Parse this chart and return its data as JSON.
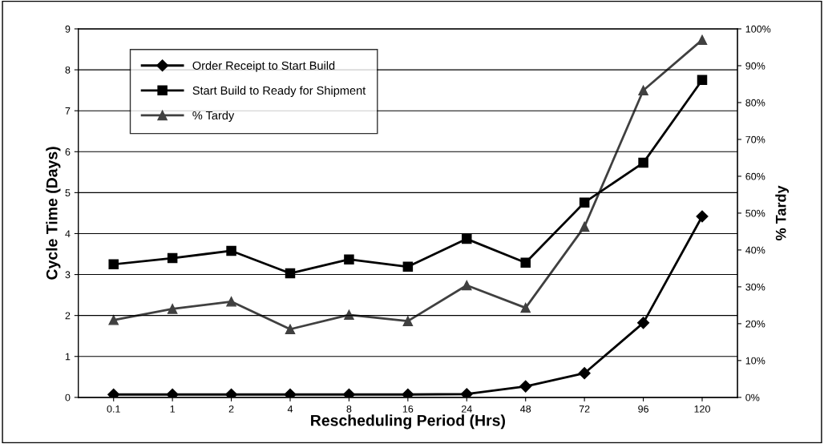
{
  "chart_data": {
    "type": "line",
    "xlabel": "Rescheduling Period (Hrs)",
    "ylabel": "Cycle Time (Days)",
    "y2label": "% Tardy",
    "categories": [
      "0.1",
      "1",
      "2",
      "4",
      "8",
      "16",
      "24",
      "48",
      "72",
      "96",
      "120"
    ],
    "ylim": [
      0,
      9
    ],
    "yticks": [
      0,
      1,
      2,
      3,
      4,
      5,
      6,
      7,
      8,
      9
    ],
    "y2lim": [
      0,
      100
    ],
    "y2ticks": [
      {
        "value": 0,
        "label": "0%"
      },
      {
        "value": 10,
        "label": "10%"
      },
      {
        "value": 20,
        "label": "20%"
      },
      {
        "value": 30,
        "label": "30%"
      },
      {
        "value": 40,
        "label": "40%"
      },
      {
        "value": 50,
        "label": "50%"
      },
      {
        "value": 60,
        "label": "60%"
      },
      {
        "value": 70,
        "label": "70%"
      },
      {
        "value": 80,
        "label": "80%"
      },
      {
        "value": 90,
        "label": "90%"
      },
      {
        "value": 100,
        "label": "100%"
      }
    ],
    "grid": "y",
    "legend": "top left",
    "line_style": "solid",
    "series": [
      {
        "name": "Order Receipt to Start Build",
        "color": "#000000",
        "marker": "diamond",
        "values": [
          0.07,
          0.07,
          0.07,
          0.07,
          0.07,
          0.07,
          0.08,
          0.27,
          0.59,
          1.82,
          4.42
        ]
      },
      {
        "name": "Start Build to Ready for Shipment",
        "color": "#000000",
        "marker": "square",
        "values": [
          3.25,
          3.4,
          3.58,
          3.03,
          3.37,
          3.19,
          3.87,
          3.29,
          4.76,
          5.73,
          7.75
        ]
      },
      {
        "name": "% Tardy",
        "color": "#404040",
        "marker": "triangle",
        "axis": "y2",
        "values": [
          21,
          24,
          26,
          18.5,
          22.4,
          20.7,
          30.4,
          24.3,
          46.3,
          83.3,
          97
        ]
      }
    ]
  }
}
